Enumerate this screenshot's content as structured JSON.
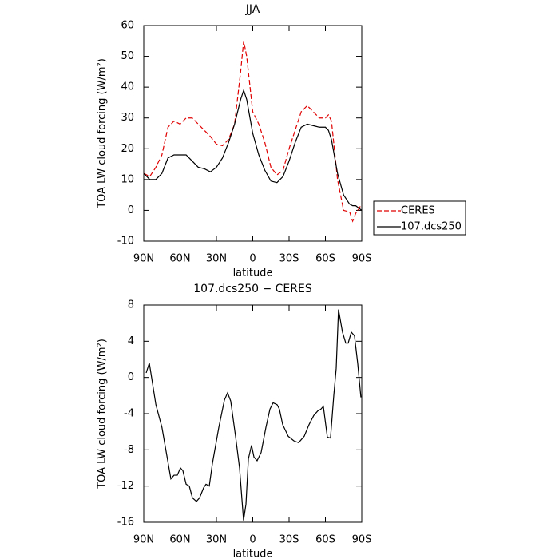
{
  "chart_data": [
    {
      "type": "line",
      "title": "JJA",
      "xlabel": "latitude",
      "ylabel": "TOA LW cloud forcing (W/m²)",
      "x": [
        90,
        85,
        80,
        75,
        70,
        65,
        60,
        55,
        50,
        45,
        40,
        35,
        30,
        25,
        20,
        15,
        10,
        7.5,
        5,
        0,
        -5,
        -10,
        -15,
        -20,
        -25,
        -30,
        -35,
        -40,
        -45,
        -50,
        -55,
        -60,
        -62.5,
        -65,
        -70,
        -75,
        -80,
        -82.5,
        -85,
        -90
      ],
      "series": [
        {
          "name": "CERES",
          "color": "#e00000",
          "dash": true,
          "values": [
            12,
            11,
            14,
            18,
            27,
            29,
            28,
            30,
            30,
            28,
            26,
            24,
            21.5,
            21,
            23,
            28,
            45,
            55,
            50,
            32,
            28,
            22,
            14,
            11.5,
            13,
            20,
            26,
            32,
            34,
            32,
            30,
            30,
            31,
            29,
            10,
            0,
            -0.5,
            -3.5,
            -1,
            2
          ]
        },
        {
          "name": "107.dcs250",
          "color": "#000000",
          "dash": false,
          "values": [
            12,
            10,
            10,
            12,
            17,
            18,
            18,
            18,
            16,
            14,
            13.5,
            12.5,
            14,
            17,
            22,
            28,
            36,
            39,
            36,
            25,
            18,
            13,
            9.5,
            9,
            11,
            16,
            22,
            27,
            28,
            27.5,
            27,
            27,
            26,
            23,
            12,
            5,
            2,
            1.5,
            1.5,
            0
          ]
        }
      ],
      "xlim": [
        90,
        -90
      ],
      "xticks": [
        {
          "value": 90,
          "label": "90N"
        },
        {
          "value": 60,
          "label": "60N"
        },
        {
          "value": 30,
          "label": "30N"
        },
        0,
        {
          "value": -30,
          "label": "30S"
        },
        {
          "value": -60,
          "label": "60S"
        },
        {
          "value": -90,
          "label": "90S"
        }
      ],
      "ylim": [
        -10,
        60
      ],
      "yticks": [
        -10,
        0,
        10,
        20,
        30,
        40,
        50,
        60
      ],
      "legend": "right"
    },
    {
      "type": "line",
      "title": "107.dcs250 − CERES",
      "xlabel": "latitude",
      "ylabel": "TOA LW cloud forcing (W/m²)",
      "x": [
        88,
        85.4,
        80,
        75,
        67.6,
        65,
        62.3,
        59.7,
        57.7,
        55,
        52.4,
        49.8,
        46.5,
        43.9,
        40.6,
        38.6,
        35.9,
        33.3,
        28,
        23.4,
        20.8,
        18.2,
        14.2,
        10.9,
        7.6,
        5.6,
        3.6,
        1,
        -1,
        -3.6,
        -6.9,
        -10.9,
        -14.2,
        -16.8,
        -20.1,
        -22,
        -24.7,
        -29.3,
        -33.9,
        -37.9,
        -42.5,
        -46.5,
        -50.4,
        -53.7,
        -56.3,
        -58.3,
        -61.6,
        -64.2,
        -66.9,
        -68.9,
        -70.8,
        -74.1,
        -76.8,
        -78.8,
        -81.4,
        -84,
        -86.7,
        -89.3
      ],
      "values": [
        0.5,
        1.6,
        -3,
        -5.5,
        -11.2,
        -10.8,
        -10.8,
        -10,
        -10.3,
        -11.8,
        -12,
        -13.3,
        -13.7,
        -13.3,
        -12.2,
        -11.8,
        -12,
        -9.5,
        -5.5,
        -2.5,
        -1.7,
        -2.6,
        -6.5,
        -10,
        -15.8,
        -14,
        -9,
        -7.5,
        -8.8,
        -9.2,
        -8.3,
        -5.5,
        -3.5,
        -2.8,
        -3,
        -3.5,
        -5.2,
        -6.5,
        -7,
        -7.2,
        -6.5,
        -5.2,
        -4.2,
        -3.7,
        -3.5,
        -3.2,
        -6.6,
        -6.7,
        -2,
        1,
        7.5,
        5,
        3.8,
        3.8,
        5,
        4.6,
        1.5,
        -2.2
      ],
      "color": "#000000",
      "xlim": [
        90,
        -90
      ],
      "xticks": [
        {
          "value": 90,
          "label": "90N"
        },
        {
          "value": 60,
          "label": "60N"
        },
        {
          "value": 30,
          "label": "30N"
        },
        0,
        {
          "value": -30,
          "label": "30S"
        },
        {
          "value": -60,
          "label": "60S"
        },
        {
          "value": -90,
          "label": "90S"
        }
      ],
      "ylim": [
        -16,
        8
      ],
      "yticks": [
        -16,
        -12,
        -8,
        -4,
        0,
        4,
        8
      ]
    }
  ]
}
